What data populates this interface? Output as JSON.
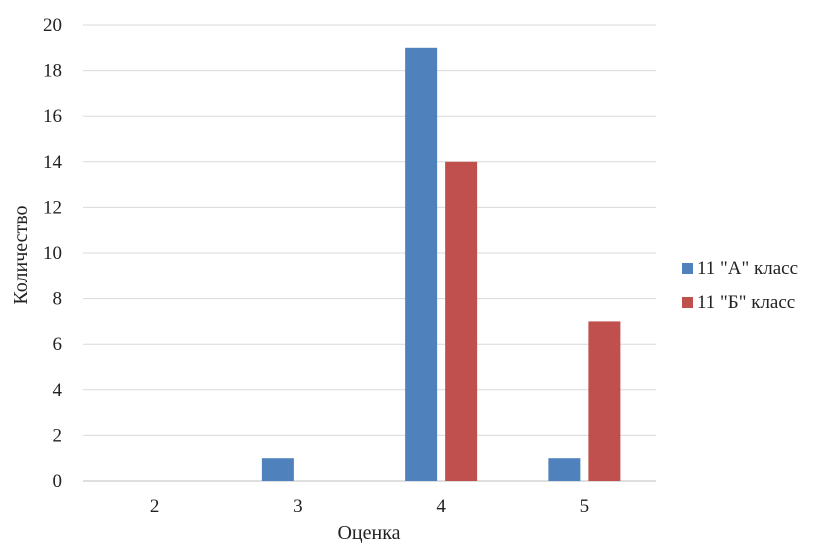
{
  "chart_data": {
    "type": "bar",
    "title": "",
    "xlabel": "Оценка",
    "ylabel": "Количество",
    "categories": [
      "2",
      "3",
      "4",
      "5"
    ],
    "series": [
      {
        "name": "11 \"А\" класс",
        "color": "#4F81BD",
        "values": [
          0,
          1,
          19,
          1
        ]
      },
      {
        "name": "11 \"Б\" класс",
        "color": "#C0504D",
        "values": [
          0,
          0,
          14,
          7
        ]
      }
    ],
    "ylim": [
      0,
      20
    ],
    "yticks": [
      "0",
      "2",
      "4",
      "6",
      "8",
      "10",
      "12",
      "14",
      "16",
      "18",
      "20"
    ],
    "grid": true,
    "legend_position": "right"
  }
}
